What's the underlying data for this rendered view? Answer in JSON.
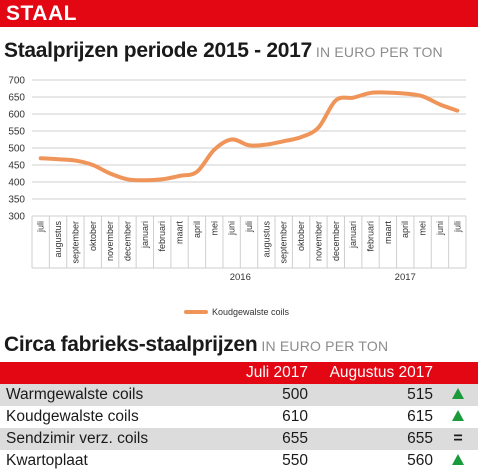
{
  "banner": {
    "label": "STAAL",
    "color": "#e30613"
  },
  "chart_section": {
    "title": "Staalprijzen periode 2015 - 2017",
    "subtitle": "IN EURO PER TON"
  },
  "chart_data": {
    "type": "line",
    "categories": [
      "juli",
      "augustus",
      "september",
      "oktober",
      "november",
      "december",
      "januari",
      "februari",
      "maart",
      "april",
      "mei",
      "juni",
      "juli",
      "augustus",
      "september",
      "oktober",
      "november",
      "december",
      "januari",
      "februari",
      "maart",
      "april",
      "mei",
      "juni",
      "juli"
    ],
    "year_labels": [
      {
        "label": "2016",
        "start_index": 6,
        "end_index": 17
      },
      {
        "label": "2017",
        "start_index": 18,
        "end_index": 24
      }
    ],
    "series": [
      {
        "name": "Koudgewalste coils",
        "color": "#f0955a",
        "values": [
          470,
          467,
          463,
          450,
          425,
          408,
          405,
          408,
          418,
          430,
          495,
          525,
          508,
          510,
          520,
          532,
          560,
          640,
          648,
          662,
          663,
          660,
          652,
          628,
          610
        ]
      }
    ],
    "ylim": [
      300,
      700
    ],
    "yticks": [
      300,
      350,
      400,
      450,
      500,
      550,
      600,
      650,
      700
    ],
    "grid": true,
    "legend_position": "bottom-center"
  },
  "table_section": {
    "title": "Circa fabrieks-staalprijzen",
    "subtitle": "IN EURO PER TON"
  },
  "price_table": {
    "columns": [
      "Juli 2017",
      "Augustus 2017"
    ],
    "rows": [
      {
        "product": "Warmgewalste coils",
        "jul": "500",
        "aug": "515",
        "trend": "up"
      },
      {
        "product": "Koudgewalste coils",
        "jul": "610",
        "aug": "615",
        "trend": "up"
      },
      {
        "product": "Sendzimir verz. coils",
        "jul": "655",
        "aug": "655",
        "trend": "equal",
        "trend_symbol": "="
      },
      {
        "product": "Kwartoplaat",
        "jul": "550",
        "aug": "560",
        "trend": "up"
      }
    ],
    "trend_up_color": "#1a9a3a"
  }
}
